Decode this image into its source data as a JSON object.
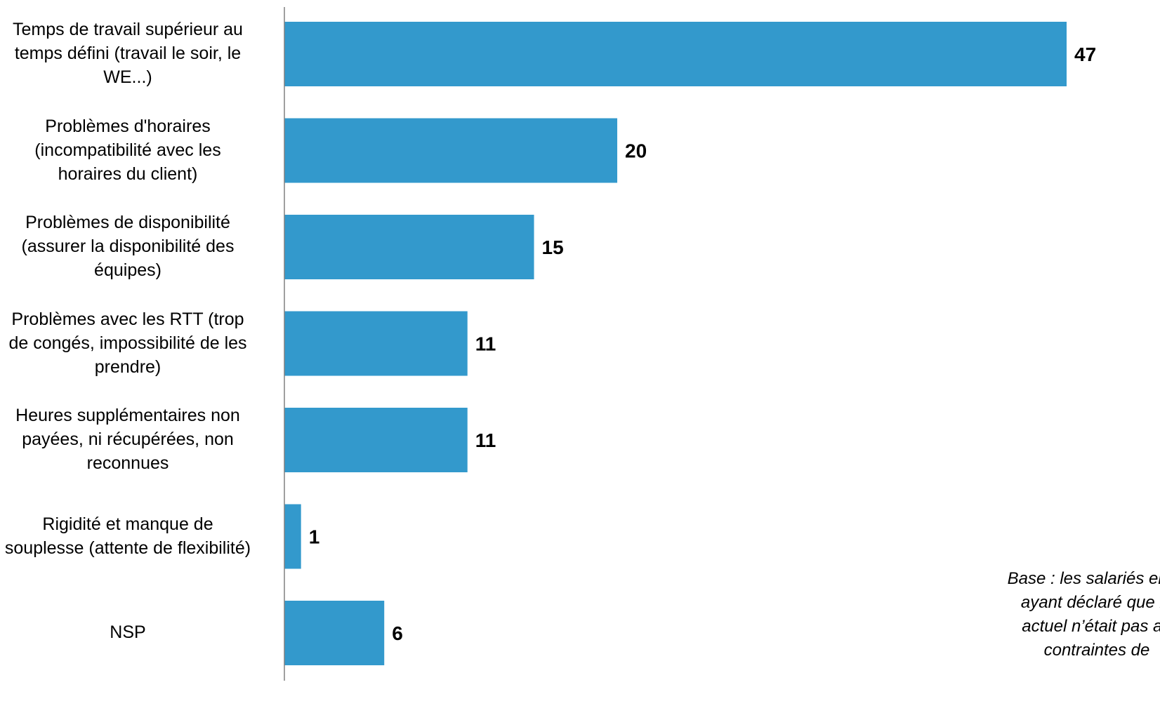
{
  "chart_data": {
    "type": "bar",
    "orientation": "horizontal",
    "categories": [
      "Temps de travail supérieur au\ntemps défini (travail le soir, le\nWE...)",
      "Problèmes d'horaires\n(incompatibilité avec les\nhoraires du client)",
      "Problèmes de disponibilité\n(assurer la disponibilité des\néquipes)",
      "Problèmes avec les RTT (trop\nde congés, impossibilité de les\nprendre)",
      "Heures supplémentaires non\npayées, ni récupérées, non\nreconnues",
      "Rigidité et manque de\nsouplesse (attente de flexibilité)",
      "NSP"
    ],
    "values": [
      47,
      20,
      15,
      11,
      11,
      1,
      6
    ],
    "data_labels": [
      "47",
      "20",
      "15",
      "11",
      "11",
      "1",
      "6"
    ],
    "xlim": [
      0,
      47
    ],
    "bar_color": "#3399CC",
    "grid": false,
    "legend": "none"
  },
  "annotation": "Base : les salariés en m\nayant déclaré que le\nactuel n’était pas ad\ncontraintes de"
}
